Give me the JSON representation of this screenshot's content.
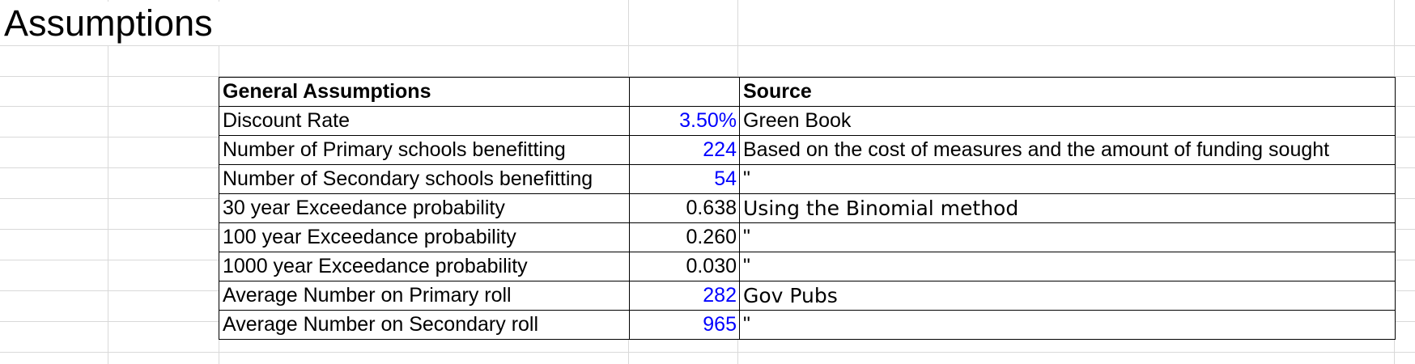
{
  "sheet": {
    "title": "Assumptions"
  },
  "table": {
    "header": {
      "label": "General Assumptions",
      "value": "",
      "source": "Source"
    },
    "rows": [
      {
        "label": "Discount Rate",
        "value": "3.50%",
        "source": "Green Book",
        "input": true
      },
      {
        "label": "Number of Primary schools benefitting",
        "value": "224",
        "source": "Based on the cost of measures and the amount of funding sought",
        "input": true
      },
      {
        "label": "Number of Secondary schools benefitting",
        "value": "54",
        "source": "\"",
        "input": true
      },
      {
        "label": "30 year Exceedance probability",
        "value": "0.638",
        "source": "Using the Binomial method",
        "input": false
      },
      {
        "label": "100 year Exceedance probability",
        "value": "0.260",
        "source": "\"",
        "input": false
      },
      {
        "label": "1000 year Exceedance probability",
        "value": "0.030",
        "source": "\"",
        "input": false
      },
      {
        "label": "Average Number on Primary roll",
        "value": "282",
        "source": "Gov Pubs",
        "input": true
      },
      {
        "label": "Average Number on Secondary roll",
        "value": "965",
        "source": "\"",
        "input": true
      }
    ]
  },
  "colors": {
    "input_value": "#0000ff",
    "formula_value": "#000000",
    "gridline": "#d9d9d9"
  }
}
